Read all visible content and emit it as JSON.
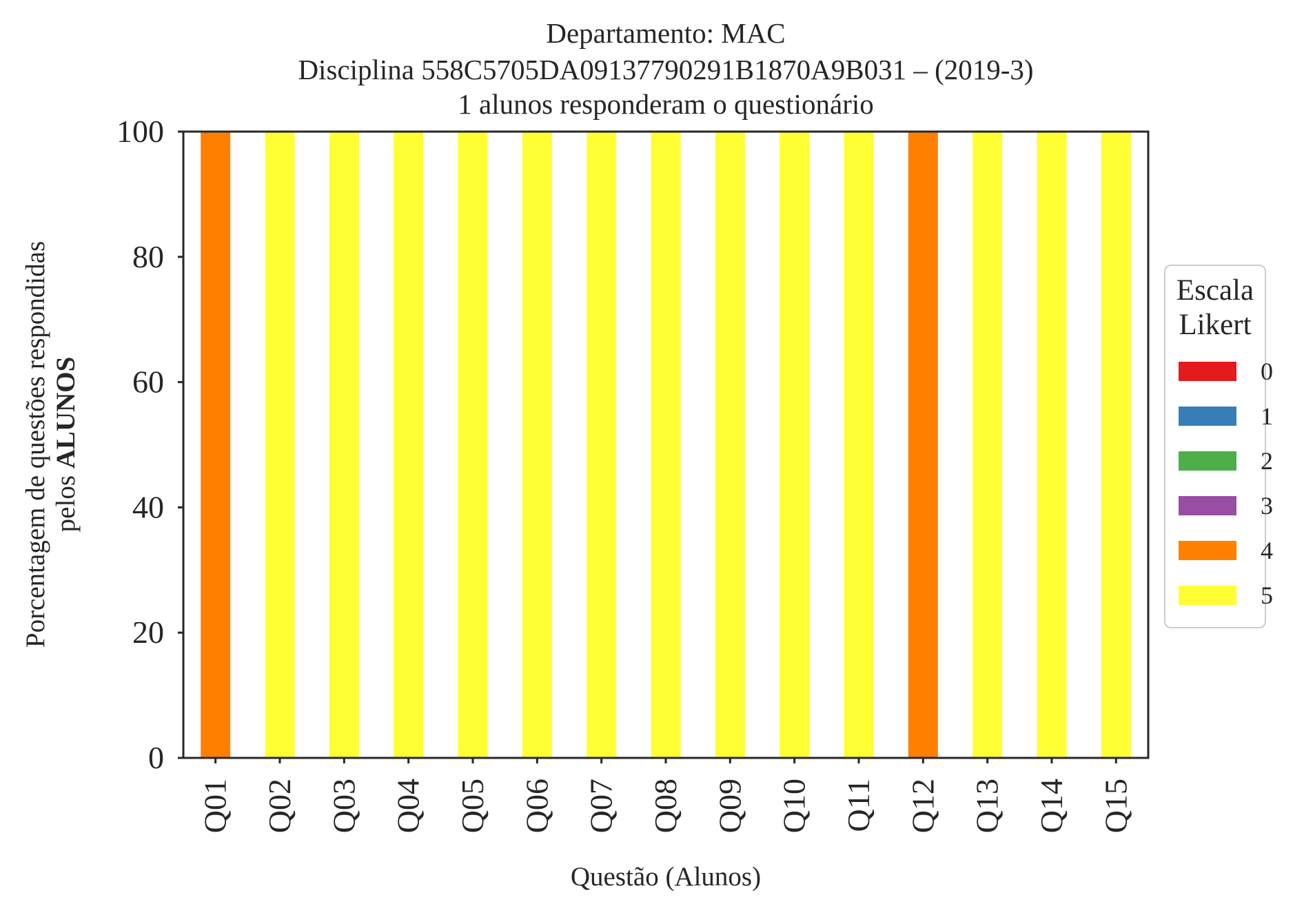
{
  "chart_data": {
    "type": "bar",
    "stacked": true,
    "title_lines": [
      "Departamento: MAC",
      "Disciplina 558C5705DA09137790291B1870A9B031 – (2019-3)",
      "1 alunos responderam o questionário"
    ],
    "xlabel": "Questão (Alunos)",
    "ylabel_line1": "Porcentagem de questões respondidas",
    "ylabel_line2_prefix": "pelos",
    "ylabel_line2_bold": "ALUNOS",
    "ylim": [
      0,
      100
    ],
    "yticks": [
      "0",
      "20",
      "40",
      "60",
      "80",
      "100"
    ],
    "categories": [
      "Q01",
      "Q02",
      "Q03",
      "Q04",
      "Q05",
      "Q06",
      "Q07",
      "Q08",
      "Q09",
      "Q10",
      "Q11",
      "Q12",
      "Q13",
      "Q14",
      "Q15"
    ],
    "series": [
      {
        "name": "0",
        "color": "#e41a1c",
        "values": [
          0,
          0,
          0,
          0,
          0,
          0,
          0,
          0,
          0,
          0,
          0,
          0,
          0,
          0,
          0
        ]
      },
      {
        "name": "1",
        "color": "#377eb8",
        "values": [
          0,
          0,
          0,
          0,
          0,
          0,
          0,
          0,
          0,
          0,
          0,
          0,
          0,
          0,
          0
        ]
      },
      {
        "name": "2",
        "color": "#4daf4a",
        "values": [
          0,
          0,
          0,
          0,
          0,
          0,
          0,
          0,
          0,
          0,
          0,
          0,
          0,
          0,
          0
        ]
      },
      {
        "name": "3",
        "color": "#984ea3",
        "values": [
          0,
          0,
          0,
          0,
          0,
          0,
          0,
          0,
          0,
          0,
          0,
          0,
          0,
          0,
          0
        ]
      },
      {
        "name": "4",
        "color": "#ff7f00",
        "values": [
          100,
          0,
          0,
          0,
          0,
          0,
          0,
          0,
          0,
          0,
          0,
          100,
          0,
          0,
          0
        ]
      },
      {
        "name": "5",
        "color": "#ffff33",
        "values": [
          0,
          100,
          100,
          100,
          100,
          100,
          100,
          100,
          100,
          100,
          100,
          0,
          100,
          100,
          100
        ]
      }
    ],
    "legend": {
      "title_lines": [
        "Escala",
        "Likert"
      ],
      "placement": "center-right outside"
    },
    "grid": false
  }
}
